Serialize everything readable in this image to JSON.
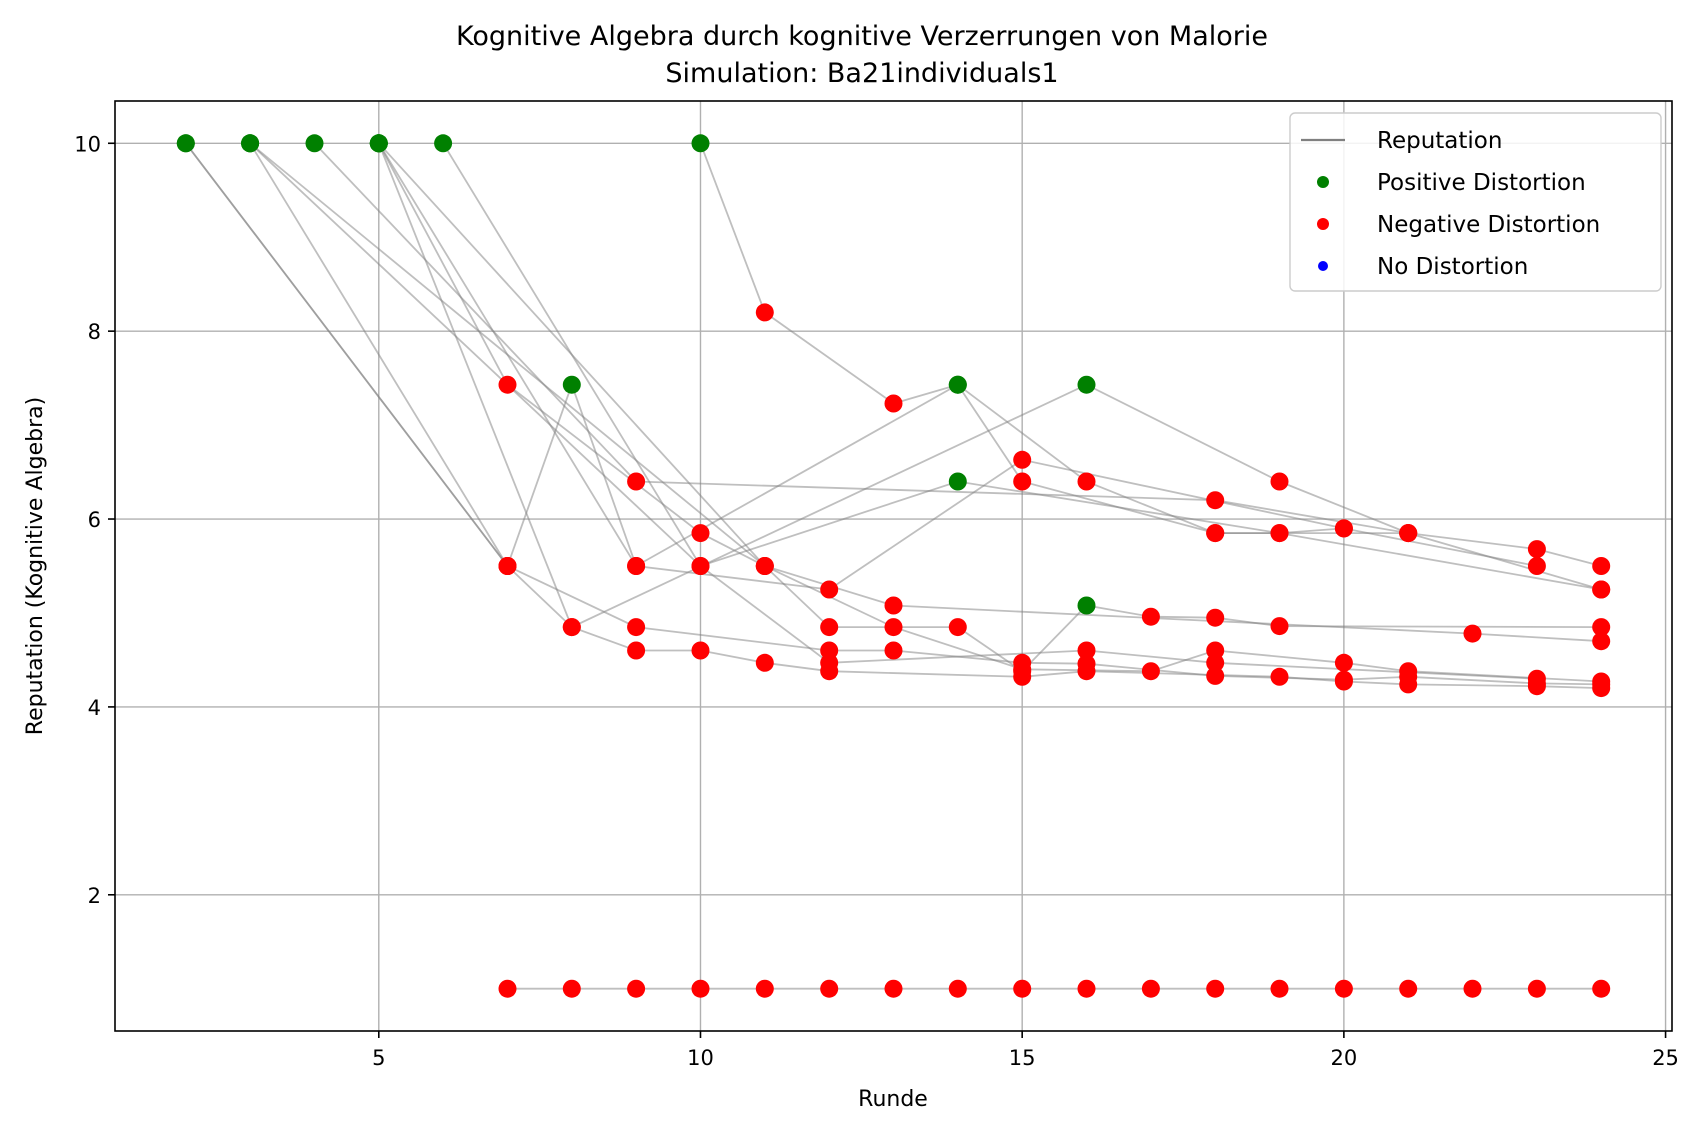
{
  "chart_data": {
    "type": "scatter",
    "title": "Kognitive Algebra durch kognitive Verzerrungen von Malorie",
    "subtitle": "Simulation: Ba21individuals1",
    "xlabel": "Runde",
    "ylabel": "Reputation (Kognitive Algebra)",
    "xlim": [
      0.9,
      25.1
    ],
    "ylim": [
      0.55,
      10.45
    ],
    "xticks": [
      5,
      10,
      15,
      20,
      25
    ],
    "yticks": [
      2,
      4,
      6,
      8,
      10
    ],
    "grid": true,
    "legend_position": "top-right",
    "legend": [
      {
        "label": "Reputation",
        "kind": "line",
        "color": "#808080"
      },
      {
        "label": "Positive Distortion",
        "kind": "marker",
        "color": "#008000"
      },
      {
        "label": "Negative Distortion",
        "kind": "marker",
        "color": "#ff0000"
      },
      {
        "label": "No Distortion",
        "kind": "marker",
        "color": "#0000ff"
      }
    ],
    "colors": {
      "positive": "#008000",
      "negative": "#ff0000",
      "none": "#0000ff",
      "line": "#808080",
      "grid": "#b0b0b0"
    },
    "series": [
      {
        "points": [
          [
            2,
            10,
            "pos"
          ],
          [
            7,
            5.5,
            "neg"
          ],
          [
            8,
            4.85,
            "neg"
          ],
          [
            9,
            4.6,
            "neg"
          ],
          [
            10,
            4.6,
            "neg"
          ],
          [
            11,
            4.47,
            "neg"
          ],
          [
            12,
            4.38,
            "neg"
          ],
          [
            15,
            4.32,
            "neg"
          ],
          [
            16,
            4.38,
            "neg"
          ],
          [
            19,
            4.32,
            "neg"
          ],
          [
            20,
            4.27,
            "neg"
          ],
          [
            21,
            4.24,
            "neg"
          ],
          [
            23,
            4.22,
            "neg"
          ],
          [
            24,
            4.2,
            "neg"
          ]
        ]
      },
      {
        "points": [
          [
            2,
            10,
            "pos"
          ],
          [
            7,
            5.5,
            "neg"
          ],
          [
            9,
            4.85,
            "neg"
          ],
          [
            12,
            4.6,
            "neg"
          ],
          [
            13,
            4.6,
            "neg"
          ],
          [
            15,
            4.47,
            "neg"
          ],
          [
            16,
            4.46,
            "neg"
          ],
          [
            18,
            4.33,
            "neg"
          ],
          [
            20,
            4.29,
            "neg"
          ],
          [
            21,
            4.32,
            "neg"
          ],
          [
            23,
            4.25,
            "neg"
          ],
          [
            24,
            4.24,
            "neg"
          ]
        ]
      },
      {
        "points": [
          [
            3,
            10,
            "pos"
          ],
          [
            7,
            5.5,
            "neg"
          ],
          [
            8,
            7.43,
            "pos"
          ],
          [
            9,
            5.5,
            "neg"
          ],
          [
            14,
            7.43,
            "pos"
          ],
          [
            15,
            6.4,
            "neg"
          ],
          [
            18,
            5.85,
            "neg"
          ],
          [
            19,
            5.85,
            "neg"
          ],
          [
            24,
            5.25,
            "neg"
          ]
        ]
      },
      {
        "points": [
          [
            3,
            10,
            "pos"
          ],
          [
            10,
            5.5,
            "neg"
          ],
          [
            14,
            6.4,
            "pos"
          ],
          [
            19,
            5.85,
            "neg"
          ],
          [
            20,
            5.9,
            "neg"
          ],
          [
            23,
            5.5,
            "neg"
          ]
        ]
      },
      {
        "points": [
          [
            3,
            10,
            "pos"
          ],
          [
            11,
            5.5,
            "neg"
          ],
          [
            12,
            4.85,
            "neg"
          ],
          [
            14,
            4.85,
            "neg"
          ],
          [
            15,
            4.38,
            "neg"
          ],
          [
            16,
            5.08,
            "pos"
          ],
          [
            17,
            4.96,
            "neg"
          ],
          [
            18,
            4.95,
            "neg"
          ],
          [
            19,
            4.86,
            "neg"
          ],
          [
            24,
            4.85,
            "neg"
          ]
        ]
      },
      {
        "points": [
          [
            4,
            10,
            "pos"
          ],
          [
            9,
            6.4,
            "neg"
          ],
          [
            18,
            6.2,
            "neg"
          ],
          [
            21,
            5.85,
            "neg"
          ],
          [
            23,
            5.68,
            "neg"
          ],
          [
            24,
            5.5,
            "neg"
          ]
        ]
      },
      {
        "points": [
          [
            5,
            10,
            "pos"
          ],
          [
            7,
            7.43,
            "neg"
          ],
          [
            10,
            5.85,
            "neg"
          ],
          [
            11,
            5.5,
            "neg"
          ],
          [
            13,
            4.85,
            "neg"
          ],
          [
            15,
            4.4,
            "neg"
          ],
          [
            17,
            4.38,
            "neg"
          ],
          [
            18,
            4.6,
            "neg"
          ],
          [
            20,
            4.47,
            "neg"
          ],
          [
            21,
            4.38,
            "neg"
          ],
          [
            24,
            4.27,
            "neg"
          ]
        ]
      },
      {
        "points": [
          [
            5,
            10,
            "pos"
          ],
          [
            8,
            4.85,
            "neg"
          ],
          [
            16,
            7.43,
            "pos"
          ],
          [
            19,
            6.4,
            "neg"
          ],
          [
            21,
            5.85,
            "neg"
          ],
          [
            24,
            5.25,
            "neg"
          ]
        ]
      },
      {
        "points": [
          [
            5,
            10,
            "pos"
          ],
          [
            11,
            5.5,
            "neg"
          ],
          [
            13,
            5.08,
            "neg"
          ],
          [
            22,
            4.78,
            "neg"
          ],
          [
            24,
            4.7,
            "neg"
          ]
        ]
      },
      {
        "points": [
          [
            5,
            10,
            "pos"
          ],
          [
            9,
            5.5,
            "neg"
          ],
          [
            12,
            5.25,
            "neg"
          ],
          [
            15,
            6.63,
            "neg"
          ],
          [
            20,
            5.9,
            "neg"
          ]
        ]
      },
      {
        "points": [
          [
            6,
            10,
            "pos"
          ],
          [
            10,
            5.5,
            "neg"
          ],
          [
            12,
            4.47,
            "neg"
          ],
          [
            16,
            4.6,
            "neg"
          ],
          [
            18,
            4.47,
            "neg"
          ],
          [
            23,
            4.3,
            "neg"
          ]
        ]
      },
      {
        "points": [
          [
            10,
            10,
            "pos"
          ],
          [
            11,
            8.2,
            "neg"
          ],
          [
            13,
            7.23,
            "neg"
          ],
          [
            14,
            7.43,
            "pos"
          ],
          [
            16,
            6.4,
            "neg"
          ],
          [
            18,
            5.85,
            "neg"
          ],
          [
            21,
            5.85,
            "neg"
          ]
        ]
      },
      {
        "points": [
          [
            7,
            1,
            "neg"
          ],
          [
            8,
            1,
            "neg"
          ],
          [
            9,
            1,
            "neg"
          ],
          [
            10,
            1,
            "neg"
          ],
          [
            11,
            1,
            "neg"
          ],
          [
            12,
            1,
            "neg"
          ],
          [
            13,
            1,
            "neg"
          ],
          [
            14,
            1,
            "neg"
          ],
          [
            15,
            1,
            "neg"
          ],
          [
            16,
            1,
            "neg"
          ],
          [
            17,
            1,
            "neg"
          ],
          [
            18,
            1,
            "neg"
          ],
          [
            19,
            1,
            "neg"
          ],
          [
            20,
            1,
            "neg"
          ],
          [
            21,
            1,
            "neg"
          ],
          [
            22,
            1,
            "neg"
          ],
          [
            23,
            1,
            "neg"
          ],
          [
            24,
            1,
            "neg"
          ]
        ]
      }
    ]
  }
}
